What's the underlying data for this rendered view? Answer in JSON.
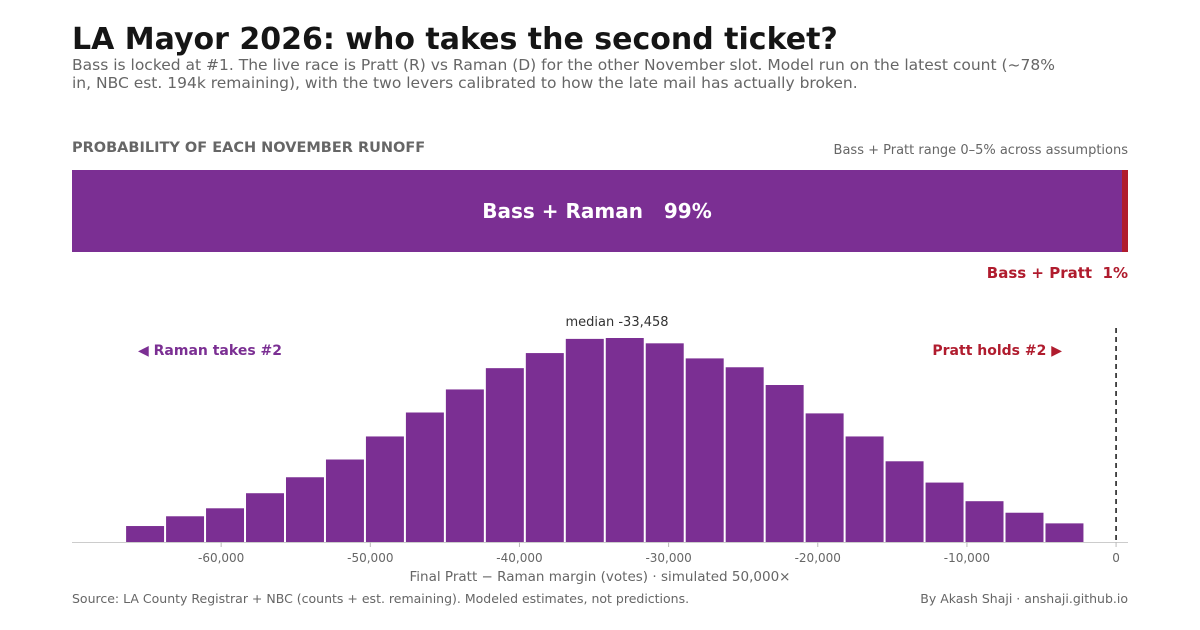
{
  "header": {
    "title": "LA Mayor 2026: who takes the second ticket?",
    "subtitle": "Bass is locked at #1. The live race is Pratt (R) vs Raman (D) for the other November slot. Model run on the latest count (~78% in, NBC est. 194k remaining), with the two levers calibrated to how the late mail has actually broken."
  },
  "runoff": {
    "section_label": "PROBABILITY OF EACH NOVEMBER RUNOFF",
    "range_note": "Bass + Pratt range 0–5% across assumptions",
    "main_label": "Bass + Raman   99%",
    "minor_label": "Bass + Pratt  1%"
  },
  "chart_data": [
    {
      "type": "bar",
      "title": "",
      "segments": [
        {
          "name": "Bass + Raman",
          "value": 99,
          "color": "#7b2f93"
        },
        {
          "name": "Bass + Pratt",
          "value": 1,
          "color": "#b01c2e"
        }
      ]
    },
    {
      "type": "bar",
      "xlabel": "Final Pratt − Raman margin (votes)  ·  simulated 50,000×",
      "xlim": [
        -70000,
        800
      ],
      "x_ticks": [
        -60000,
        -50000,
        -40000,
        -30000,
        -20000,
        -10000,
        0
      ],
      "x_tick_labels": [
        "-60,000",
        "-50,000",
        "-40,000",
        "-30,000",
        "-20,000",
        "-10,000",
        "0"
      ],
      "bin_width": 2680,
      "bins": [
        {
          "center": -65100,
          "count": 90
        },
        {
          "center": -62420,
          "count": 145
        },
        {
          "center": -59740,
          "count": 190
        },
        {
          "center": -57060,
          "count": 275
        },
        {
          "center": -54380,
          "count": 365
        },
        {
          "center": -51700,
          "count": 465
        },
        {
          "center": -49020,
          "count": 595
        },
        {
          "center": -46340,
          "count": 730
        },
        {
          "center": -43660,
          "count": 860
        },
        {
          "center": -40980,
          "count": 980
        },
        {
          "center": -38300,
          "count": 1065
        },
        {
          "center": -35620,
          "count": 1145
        },
        {
          "center": -32940,
          "count": 1150
        },
        {
          "center": -30260,
          "count": 1120
        },
        {
          "center": -27580,
          "count": 1035
        },
        {
          "center": -24900,
          "count": 985
        },
        {
          "center": -22220,
          "count": 885
        },
        {
          "center": -19540,
          "count": 725
        },
        {
          "center": -16860,
          "count": 595
        },
        {
          "center": -14180,
          "count": 455
        },
        {
          "center": -11500,
          "count": 335
        },
        {
          "center": -8820,
          "count": 230
        },
        {
          "center": -6140,
          "count": 165
        },
        {
          "center": -3460,
          "count": 105
        }
      ],
      "median": -33458,
      "median_label": "median -33,458",
      "threshold": 0,
      "left_annotation": "◀ Raman takes #2",
      "right_annotation": "Pratt holds #2 ▶",
      "bar_color": "#7b2f93",
      "left_color": "#7b2f93",
      "right_color": "#b01c2e"
    }
  ],
  "footer": {
    "source": "Source: LA County Registrar + NBC (counts + est. remaining). Modeled estimates, not predictions.",
    "byline": "By Akash Shaji · anshaji.github.io"
  }
}
